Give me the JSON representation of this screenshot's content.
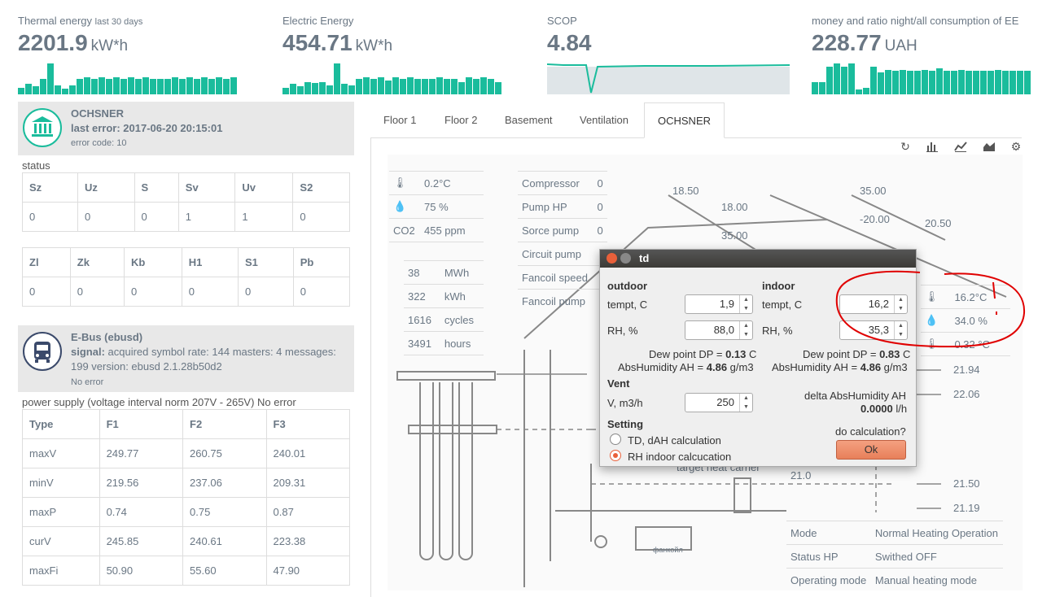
{
  "stats": [
    {
      "label": "Thermal energy",
      "label_small": "last 30 days",
      "value": "2201.9",
      "unit": "kW*h",
      "spark": [
        8,
        14,
        10,
        20,
        40,
        12,
        7,
        12,
        20,
        22,
        20,
        22,
        20,
        22,
        20,
        22,
        20,
        22,
        20,
        20,
        20,
        22,
        20,
        22,
        20,
        22,
        20,
        22,
        20,
        22
      ]
    },
    {
      "label": "Electric Energy",
      "label_small": "",
      "value": "454.71",
      "unit": "kW*h",
      "spark": [
        8,
        14,
        10,
        16,
        15,
        16,
        12,
        40,
        14,
        12,
        20,
        22,
        20,
        22,
        18,
        22,
        20,
        22,
        20,
        20,
        20,
        22,
        20,
        20,
        16,
        22,
        20,
        22,
        20,
        16
      ]
    },
    {
      "label": "SCOP",
      "label_small": "",
      "value": "4.84",
      "unit": "",
      "spark": []
    },
    {
      "label": "money and ratio night/all consumption of EE",
      "label_small": "",
      "value": "228.77",
      "unit": "UAH",
      "spark": [
        16,
        16,
        36,
        40,
        36,
        40,
        6,
        8,
        36,
        28,
        32,
        30,
        32,
        30,
        30,
        32,
        30,
        34,
        30,
        30,
        32,
        30,
        30,
        30,
        30,
        32,
        30,
        30,
        30,
        30
      ]
    }
  ],
  "ochsner": {
    "title": "OCHSNER",
    "last_error": "last error: 2017-06-20 20:15:01",
    "code": "error code: 10",
    "icon": "bank-icon"
  },
  "status_label": "status",
  "status1": {
    "head": [
      "Sz",
      "Uz",
      "S",
      "Sv",
      "Uv",
      "S2"
    ],
    "row": [
      "0",
      "0",
      "0",
      "1",
      "1",
      "0"
    ]
  },
  "status2": {
    "head": [
      "Zl",
      "Zk",
      "Kb",
      "H1",
      "S1",
      "Pb"
    ],
    "row": [
      "0",
      "0",
      "0",
      "0",
      "0",
      "0"
    ]
  },
  "ebus": {
    "title": "E-Bus (ebusd)",
    "signal_label": "signal:",
    "signal": " acquired symbol rate: 144 masters: 4 messages:",
    "line2": "199 version: ebusd 2.1.28b50d2",
    "error": "No error",
    "icon": "bus-icon"
  },
  "power_label": "power supply (voltage interval norm 207V - 265V) No error",
  "power": {
    "head": [
      "Type",
      "F1",
      "F2",
      "F3"
    ],
    "rows": [
      [
        "maxV",
        "249.77",
        "260.75",
        "240.01"
      ],
      [
        "minV",
        "219.56",
        "237.06",
        "209.31"
      ],
      [
        "maxP",
        "0.74",
        "0.75",
        "0.87"
      ],
      [
        "curV",
        "245.85",
        "240.61",
        "223.38"
      ],
      [
        "maxFi",
        "50.90",
        "55.60",
        "47.90"
      ]
    ]
  },
  "tabs": [
    "Floor 1",
    "Floor 2",
    "Basement",
    "Ventilation",
    "OCHSNER"
  ],
  "tools": [
    "refresh-icon",
    "bar-chart-icon",
    "line-chart-icon",
    "area-chart-icon",
    "gear-icon"
  ],
  "diagram": {
    "sensors": [
      {
        "v": "0.2°C"
      },
      {
        "v": "75 %"
      },
      {
        "k": "CO2",
        "v": "455 ppm"
      }
    ],
    "energy": [
      [
        "38",
        "MWh"
      ],
      [
        "322",
        "kWh"
      ],
      [
        "1616",
        "cycles"
      ],
      [
        "3491",
        "hours"
      ]
    ],
    "pumps": [
      [
        "Compressor",
        "0"
      ],
      [
        "Pump HP",
        "0"
      ],
      [
        "Sorce pump",
        "0"
      ],
      [
        "Circuit pump",
        ""
      ],
      [
        "Fancoil speed",
        ""
      ],
      [
        "Fancoil pump",
        ""
      ]
    ],
    "temps": [
      "18.50",
      "18.00",
      "35.00",
      "-20.00",
      "20.50",
      "35.00",
      "21.94",
      "22.06",
      "21.0",
      "21.50",
      "21.19"
    ],
    "right_sensors": [
      "16.2°C",
      "34.0 %",
      "0.32 °C"
    ],
    "fancoil": "фанкойл",
    "target": "target heat carrier",
    "info": [
      [
        "Mode",
        "Normal Heating Operation"
      ],
      [
        "Status HP",
        "Swithed OFF"
      ],
      [
        "Operating mode",
        "Manual heating mode"
      ]
    ]
  },
  "dialog": {
    "title": "td",
    "outdoor": "outdoor",
    "indoor": "indoor",
    "tempt": "tempt, C",
    "rh": "RH, %",
    "out_t": "1,9",
    "out_rh": "88,0",
    "in_t": "16,2",
    "in_rh": "35,3",
    "dew_out_label": "Dew point DP = ",
    "dew_out": "0.13",
    "dew_out_u": " C",
    "ah_out_label": "AbsHumidity AH = ",
    "ah_out": "4.86",
    "ah_out_u": " g/m3",
    "dew_in_label": "Dew point DP = ",
    "dew_in": "0.83",
    "dew_in_u": " C",
    "ah_in_label": "AbsHumidity AH = ",
    "ah_in": "4.86",
    "ah_in_u": " g/m3",
    "vent": "Vent",
    "v_label": "V, m3/h",
    "v": "250",
    "delta_label": "delta AbsHumidity AH",
    "delta": "0.0000",
    "delta_u": " l/h",
    "setting": "Setting",
    "opt1": "TD, dAH calculation",
    "opt2": "RH indoor calcucation",
    "question": "do calculation?",
    "ok": "Ok"
  },
  "colors": {
    "accent": "#1abc9c",
    "text": "#6a7784",
    "annot": "#e00000"
  }
}
